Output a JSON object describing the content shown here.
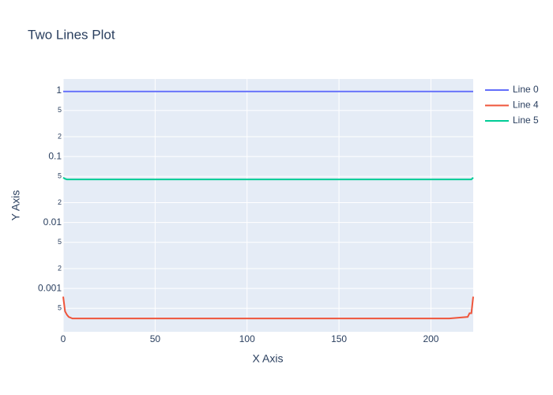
{
  "chart_data": {
    "type": "line",
    "title": "Two Lines Plot",
    "x_label": "X Axis",
    "y_label": "Y Axis",
    "x": [
      0,
      1,
      2,
      3,
      5,
      10,
      20,
      30,
      40,
      50,
      60,
      70,
      80,
      90,
      100,
      110,
      120,
      130,
      140,
      150,
      160,
      170,
      180,
      190,
      200,
      210,
      220,
      221,
      222,
      223
    ],
    "series": [
      {
        "name": "Line 0",
        "color": "#636efa",
        "values": [
          0.97,
          0.97,
          0.97,
          0.97,
          0.97,
          0.97,
          0.97,
          0.97,
          0.97,
          0.97,
          0.97,
          0.97,
          0.97,
          0.97,
          0.97,
          0.97,
          0.97,
          0.97,
          0.97,
          0.97,
          0.97,
          0.97,
          0.97,
          0.97,
          0.97,
          0.97,
          0.97,
          0.97,
          0.97,
          0.97
        ]
      },
      {
        "name": "Line 4",
        "color": "#EF553B",
        "values": [
          0.00075,
          0.00045,
          0.0004,
          0.00037,
          0.00035,
          0.00035,
          0.00035,
          0.00035,
          0.00035,
          0.00035,
          0.00035,
          0.00035,
          0.00035,
          0.00035,
          0.00035,
          0.00035,
          0.00035,
          0.00035,
          0.00035,
          0.00035,
          0.00035,
          0.00035,
          0.00035,
          0.00035,
          0.00035,
          0.00035,
          0.00037,
          0.00042,
          0.00042,
          0.00075
        ]
      },
      {
        "name": "Line 5",
        "color": "#00cc96",
        "values": [
          0.048,
          0.046,
          0.045,
          0.045,
          0.045,
          0.045,
          0.045,
          0.045,
          0.045,
          0.045,
          0.045,
          0.045,
          0.045,
          0.045,
          0.045,
          0.045,
          0.045,
          0.045,
          0.045,
          0.045,
          0.045,
          0.045,
          0.045,
          0.045,
          0.045,
          0.045,
          0.045,
          0.045,
          0.045,
          0.048
        ]
      }
    ],
    "xlim": [
      0,
      223
    ],
    "xticks": [
      0,
      50,
      100,
      150,
      200
    ],
    "ylim": [
      0.00022,
      1.5
    ],
    "log_y": true,
    "yticks": [
      1,
      {
        "value": 0.5,
        "label": "5"
      },
      {
        "value": 0.2,
        "label": "2"
      },
      0.1,
      {
        "value": 0.05,
        "label": "5"
      },
      {
        "value": 0.02,
        "label": "2"
      },
      0.01,
      {
        "value": 0.005,
        "label": "5"
      },
      {
        "value": 0.002,
        "label": "2"
      },
      0.001,
      {
        "value": 0.0005,
        "label": "5"
      }
    ],
    "grid": true,
    "legend": "right",
    "background": "#e5ecf6"
  }
}
